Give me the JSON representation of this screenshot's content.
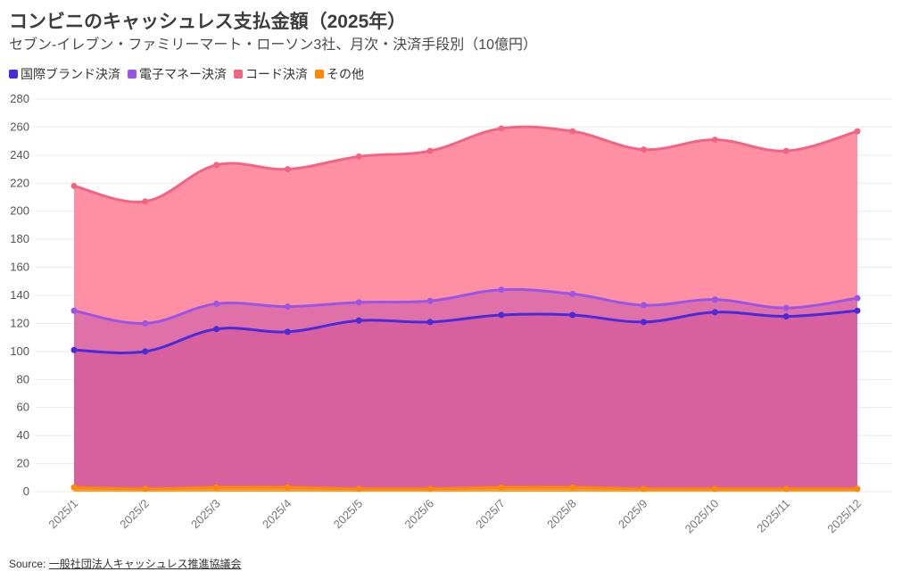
{
  "header": {
    "title": "コンビニのキャッシュレス支払金額（2025年）",
    "subtitle": "セブン-イレブン・ファミリーマート・ローソン3社、月次・決済手段別（10億円）"
  },
  "source": {
    "prefix": "Source: ",
    "name": "一般社団法人キャッシュレス推進協議会"
  },
  "chart_data": {
    "type": "area",
    "stacked": true,
    "categories": [
      "2025/1",
      "2025/2",
      "2025/3",
      "2025/4",
      "2025/5",
      "2025/6",
      "2025/7",
      "2025/8",
      "2025/9",
      "2025/10",
      "2025/11",
      "2025/12"
    ],
    "ylim": [
      0,
      280
    ],
    "yticks": [
      0,
      20,
      40,
      60,
      80,
      100,
      120,
      140,
      160,
      180,
      200,
      220,
      240,
      260,
      280
    ],
    "grid": true,
    "legend_position": "top-left",
    "series": [
      {
        "name": "国際ブランド決済",
        "color": "#4a2bd9",
        "values": [
          101,
          100,
          116,
          114,
          122,
          121,
          126,
          126,
          121,
          128,
          125,
          129
        ]
      },
      {
        "name": "電子マネー決済",
        "color": "#9b55e6",
        "values": [
          28,
          20,
          18,
          18,
          13,
          15,
          18,
          15,
          12,
          9,
          6,
          9
        ]
      },
      {
        "name": "コード決済",
        "color": "#f26582",
        "values": [
          89,
          87,
          99,
          98,
          104,
          107,
          115,
          116,
          111,
          114,
          112,
          119
        ]
      },
      {
        "name": "その他",
        "color": "#ff8a00",
        "values": [
          3,
          2,
          3,
          3,
          2,
          2,
          3,
          3,
          2,
          2,
          2,
          2
        ]
      }
    ]
  }
}
